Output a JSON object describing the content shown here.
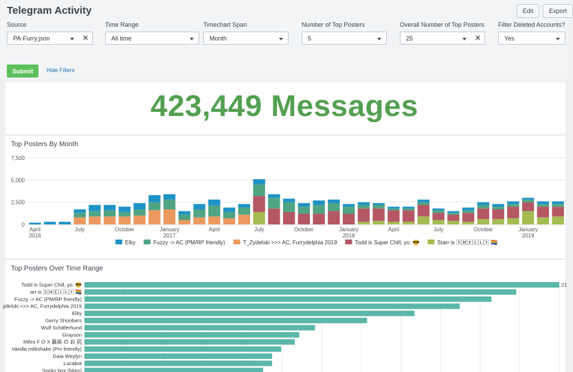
{
  "app": {
    "title": "Telegram Activity",
    "edit_label": "Edit",
    "export_label": "Export"
  },
  "filters": {
    "source": {
      "label": "Source",
      "value": "PA-Furry.json"
    },
    "time_range": {
      "label": "Time Range",
      "value": "All time"
    },
    "timechart_span": {
      "label": "Timechart Span",
      "value": "Month"
    },
    "top_posters": {
      "label": "Number of Top Posters",
      "value": "5"
    },
    "overall_top": {
      "label": "Overall Number of Top Posters",
      "value": "25"
    },
    "deleted": {
      "label": "Filter Deleted Accounts?",
      "value": "Yes"
    },
    "submit_label": "Submit",
    "hide_label": "Hide Filters"
  },
  "single_value": {
    "text": "423,449 Messages"
  },
  "colors": {
    "accent_green": "#53a051",
    "submit_green": "#5cc05c",
    "hbar": "#5bb7a9"
  },
  "chart_data": [
    {
      "type": "bar",
      "stacked": true,
      "title": "Top Posters By Month",
      "grid": true,
      "ylim": [
        0,
        7500
      ],
      "yticks": [
        "7,500",
        "5,000",
        "2,500",
        "0"
      ],
      "xticks": [
        {
          "label": "April",
          "sub": "2016",
          "index": 0
        },
        {
          "label": "July",
          "sub": "",
          "index": 3
        },
        {
          "label": "October",
          "sub": "",
          "index": 6
        },
        {
          "label": "January",
          "sub": "2017",
          "index": 9
        },
        {
          "label": "April",
          "sub": "",
          "index": 12
        },
        {
          "label": "July",
          "sub": "",
          "index": 15
        },
        {
          "label": "October",
          "sub": "",
          "index": 18
        },
        {
          "label": "January",
          "sub": "2018",
          "index": 21
        },
        {
          "label": "April",
          "sub": "",
          "index": 24
        },
        {
          "label": "July",
          "sub": "",
          "index": 27
        },
        {
          "label": "October",
          "sub": "",
          "index": 30
        },
        {
          "label": "January",
          "sub": "2019",
          "index": 33
        }
      ],
      "categories": [
        "2016-04",
        "2016-05",
        "2016-06",
        "2016-07",
        "2016-08",
        "2016-09",
        "2016-10",
        "2016-11",
        "2016-12",
        "2017-01",
        "2017-02",
        "2017-03",
        "2017-04",
        "2017-05",
        "2017-06",
        "2017-07",
        "2017-08",
        "2017-09",
        "2017-10",
        "2017-11",
        "2017-12",
        "2018-01",
        "2018-02",
        "2018-03",
        "2018-04",
        "2018-05",
        "2018-06",
        "2018-07",
        "2018-08",
        "2018-09",
        "2018-10",
        "2018-11",
        "2018-12",
        "2019-01",
        "2019-02",
        "2019-03"
      ],
      "series": [
        {
          "name": "Starr is 🅂🄼🄴🄻🄻🅈 🏳️‍🌈",
          "color": "#a5bc52",
          "values": [
            0,
            0,
            0,
            0,
            0,
            0,
            0,
            0,
            0,
            0,
            0,
            0,
            0,
            0,
            0,
            1400,
            0,
            0,
            0,
            0,
            0,
            0,
            300,
            400,
            300,
            300,
            900,
            500,
            400,
            300,
            600,
            600,
            700,
            1500,
            800,
            900
          ]
        },
        {
          "name": "Todd is Super Chill, yo. 😎",
          "color": "#b55764",
          "values": [
            0,
            0,
            0,
            0,
            0,
            0,
            0,
            0,
            0,
            0,
            0,
            0,
            0,
            0,
            0,
            1800,
            1800,
            1400,
            1200,
            1200,
            1500,
            1200,
            1500,
            1400,
            1300,
            1300,
            1300,
            800,
            700,
            1000,
            1200,
            1100,
            1300,
            1000,
            1200,
            1100
          ]
        },
        {
          "name": "T_Zydelski >>> AC, Furrydelphia 2019",
          "color": "#ec9960",
          "values": [
            0,
            0,
            0,
            800,
            900,
            900,
            900,
            1000,
            1600,
            1700,
            500,
            800,
            900,
            700,
            1100,
            0,
            0,
            0,
            0,
            0,
            0,
            0,
            0,
            0,
            0,
            0,
            0,
            0,
            0,
            0,
            0,
            0,
            0,
            0,
            0,
            0
          ]
        },
        {
          "name": "Fuzzy -> AC (PM/RP friendly)",
          "color": "#4fa484",
          "values": [
            0,
            0,
            0,
            500,
            600,
            700,
            500,
            700,
            900,
            1100,
            600,
            900,
            1200,
            700,
            800,
            1300,
            1200,
            1100,
            800,
            1000,
            900,
            800,
            400,
            400,
            200,
            200,
            300,
            300,
            200,
            300,
            400,
            300,
            300,
            300,
            300,
            300
          ]
        },
        {
          "name": "Elky",
          "color": "#1e93c6",
          "values": [
            200,
            300,
            300,
            400,
            700,
            600,
            600,
            700,
            800,
            600,
            400,
            600,
            700,
            500,
            400,
            600,
            400,
            400,
            400,
            500,
            400,
            300,
            300,
            200,
            200,
            200,
            300,
            200,
            200,
            300,
            300,
            300,
            300,
            200,
            300,
            300
          ]
        }
      ]
    },
    {
      "type": "bar",
      "orientation": "horizontal",
      "title": "Top Posters Over Time Range",
      "grid": true,
      "categories": [
        "Todd is Super Chill, yo. 😎",
        "arr is 🅂🄼🄴🄻🄻🅈 🏳️‍🌈",
        "Fuzzy -> AC (PM/RP friendly)",
        "ydelski >>> AC, Furrydelphia 2019",
        "Elky",
        "Gerry Shoobers",
        "Wulf Schäferhund",
        "Grayson",
        "Miles F O X 最高 の お 尻",
        "Vanilla milkshake (Pm friendly)",
        "Gaia Weylyn",
        "Lucabot",
        "Socks box (bites)"
      ],
      "values": [
        21000,
        19100,
        18000,
        16600,
        14600,
        12500,
        10200,
        9500,
        9300,
        8700,
        8300,
        8300,
        7900
      ],
      "visible_value_label": "21",
      "xlim": [
        0,
        21000
      ]
    }
  ]
}
